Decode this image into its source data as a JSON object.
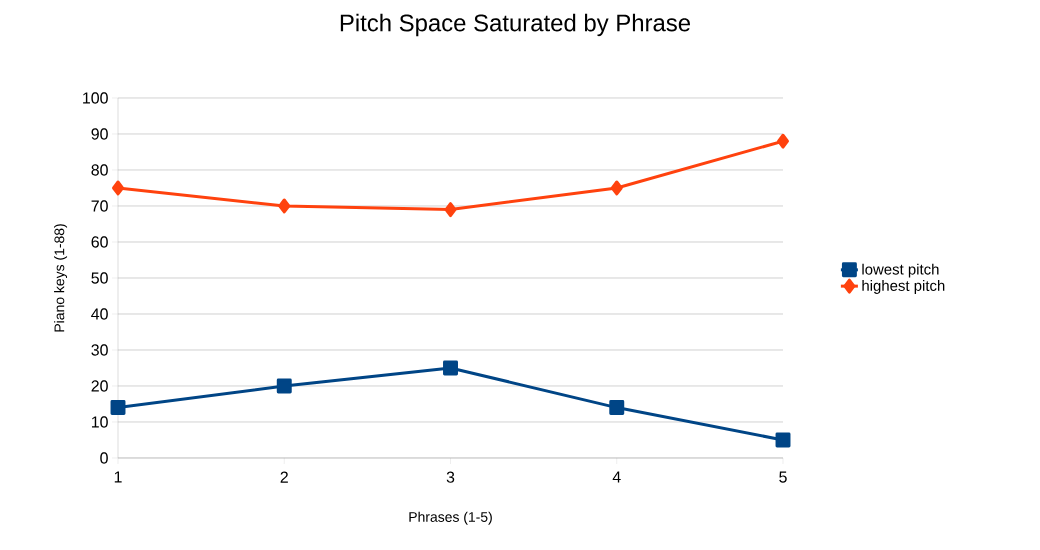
{
  "chart_data": {
    "type": "line",
    "title": "Pitch Space Saturated by Phrase",
    "xlabel": "Phrases (1-5)",
    "ylabel": "Piano keys (1-88)",
    "x": [
      1,
      2,
      3,
      4,
      5
    ],
    "xlim": [
      1,
      5
    ],
    "xticks": [
      1,
      2,
      3,
      4,
      5
    ],
    "ylim": [
      0,
      100
    ],
    "yticks": [
      0,
      10,
      20,
      30,
      40,
      50,
      60,
      70,
      80,
      90,
      100
    ],
    "grid": "y",
    "legend": "right",
    "line_style": "solid",
    "series": [
      {
        "name": "lowest pitch",
        "color": "#004586",
        "marker": "square",
        "values": [
          14,
          20,
          25,
          14,
          5
        ]
      },
      {
        "name": "highest pitch",
        "color": "#ff420e",
        "marker": "diamond",
        "values": [
          75,
          70,
          69,
          75,
          88
        ]
      }
    ]
  }
}
